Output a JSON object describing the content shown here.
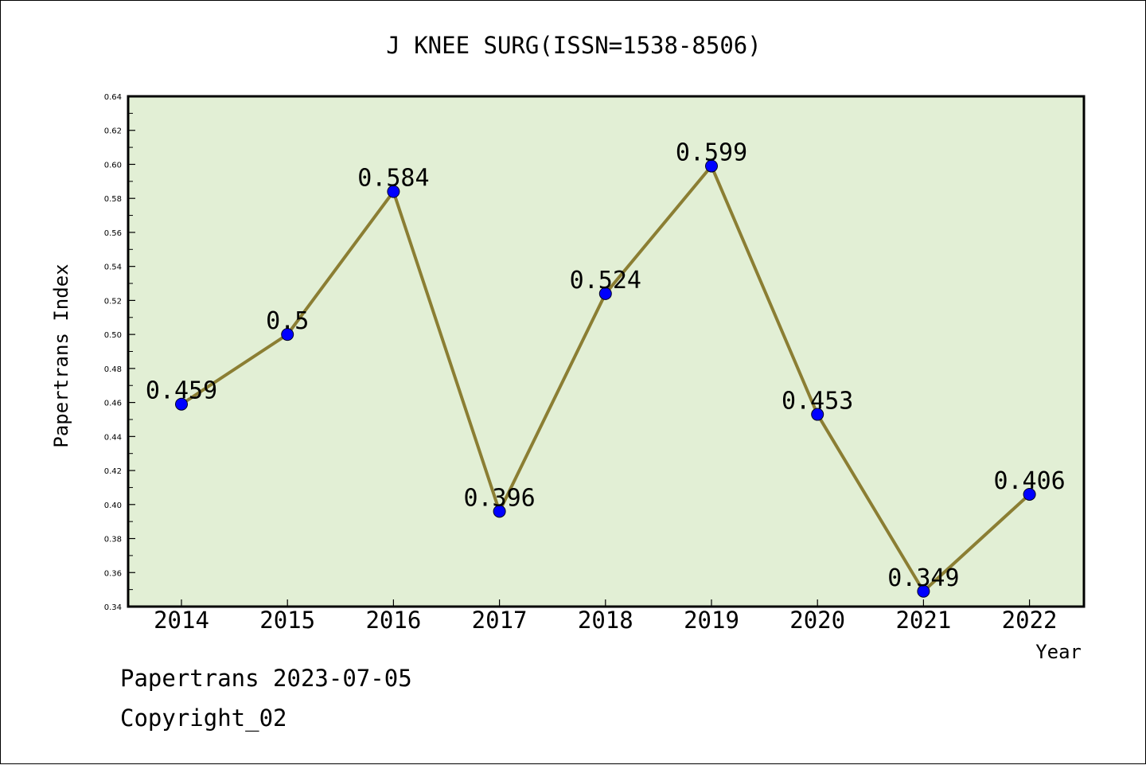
{
  "chart_data": {
    "type": "line",
    "title": "J KNEE SURG(ISSN=1538-8506)",
    "xlabel": "Year",
    "ylabel": "Papertrans Index",
    "categories": [
      "2014",
      "2015",
      "2016",
      "2017",
      "2018",
      "2019",
      "2020",
      "2021",
      "2022"
    ],
    "values": [
      0.459,
      0.5,
      0.584,
      0.396,
      0.524,
      0.599,
      0.453,
      0.349,
      0.406
    ],
    "data_labels": [
      "0.459",
      "0.5",
      "0.584",
      "0.396",
      "0.524",
      "0.599",
      "0.453",
      "0.349",
      "0.406"
    ],
    "ylim": [
      0.34,
      0.64
    ],
    "yticks": [
      "0.34",
      "0.36",
      "0.38",
      "0.40",
      "0.42",
      "0.44",
      "0.46",
      "0.48",
      "0.50",
      "0.52",
      "0.54",
      "0.56",
      "0.58",
      "0.60",
      "0.62",
      "0.64"
    ],
    "grid": false,
    "legend": "none",
    "colors": {
      "plot_background": "#e2efd5",
      "line": "#8b7e33",
      "marker": "#0000ff"
    }
  },
  "footer": {
    "line1": "Papertrans 2023-07-05",
    "line2": "Copyright_02"
  }
}
